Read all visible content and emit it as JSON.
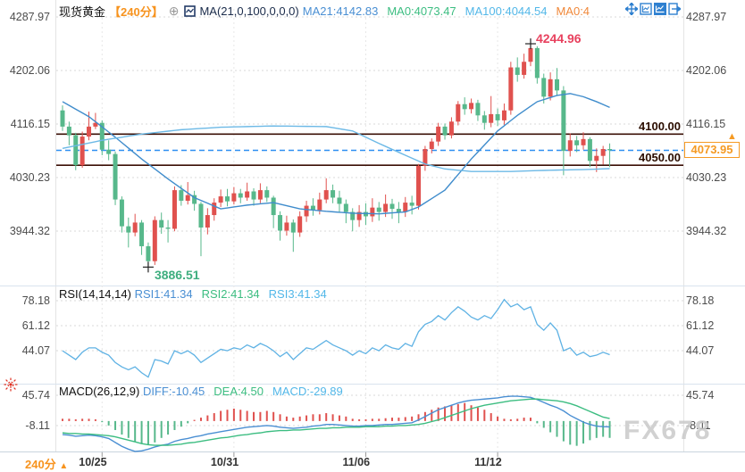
{
  "header": {
    "title": "现货黄金",
    "period": "【240分】",
    "add_icon": "⊕",
    "indicator": "MA(21,0,100,0,0,0)",
    "ma_values": [
      {
        "text": "MA21:4142.83",
        "color": "#4a8fd3"
      },
      {
        "text": "MA0:4073.47",
        "color": "#3cbd81"
      },
      {
        "text": "MA100:4044.54",
        "color": "#52b7e8"
      },
      {
        "text": "MA0:4",
        "color": "#f0883a"
      }
    ]
  },
  "toolbar": {
    "icons": [
      "pan",
      "fit-scale",
      "chart-style-active",
      "go-to-latest"
    ]
  },
  "rsi_header": {
    "name": "RSI(14,14,14)",
    "values": [
      {
        "text": "RSI1:41.34",
        "color": "#4a8fd3"
      },
      {
        "text": "RSI2:41.34",
        "color": "#3cbd81"
      },
      {
        "text": "RSI3:41.34",
        "color": "#52b7e8"
      }
    ]
  },
  "macd_header": {
    "name": "MACD(26,12,9)",
    "values": [
      {
        "text": "DIFF:-10.45",
        "color": "#4a8fd3"
      },
      {
        "text": "DEA:4.50",
        "color": "#3cbd81"
      },
      {
        "text": "MACD:-29.89",
        "color": "#52b7e8"
      }
    ]
  },
  "annotations": {
    "high": "4244.96",
    "low": "3886.51",
    "hline_top": "4100.00",
    "hline_bottom": "4050.00",
    "last_price": "4073.95",
    "arrow": "▲"
  },
  "footer": {
    "period": "240分",
    "arrow": "▲"
  },
  "watermark": "FX678",
  "colors": {
    "up": "#e0514e",
    "down": "#57b88b",
    "ma21": "#3f8ccc",
    "ma100": "#6cb9e6",
    "rsi": "#5fb2e4",
    "diff": "#4a8fd3",
    "dea": "#3cbd81",
    "hist_up": "#e0514e",
    "hist_down": "#57b88b",
    "hline": "#3a0f05",
    "dashed": "#2e8ff2",
    "grid": "#dcdcdc",
    "accent": "#f59a23"
  },
  "chart_data": [
    {
      "type": "candlestick",
      "title": "现货黄金 240分",
      "x_ticks": [
        "10/25",
        "10/31",
        "11/06",
        "11/12"
      ],
      "x_tick_indices": [
        6,
        26,
        46,
        66
      ],
      "y_ticks": [
        4287.97,
        4202.06,
        4116.15,
        4030.23,
        3944.32
      ],
      "ylim": [
        3868,
        4301
      ],
      "hlines": [
        4100.0,
        4050.0
      ],
      "last_price": 4073.95,
      "high_annotation": {
        "value": 4244.96,
        "index": 71
      },
      "low_annotation": {
        "value": 3886.51,
        "index": 13
      },
      "candles": [
        [
          4138,
          4146,
          4105,
          4112
        ],
        [
          4112,
          4120,
          4082,
          4098
        ],
        [
          4098,
          4102,
          4042,
          4050
        ],
        [
          4050,
          4104,
          4046,
          4096
        ],
        [
          4096,
          4136,
          4090,
          4112
        ],
        [
          4112,
          4134,
          4108,
          4118
        ],
        [
          4118,
          4122,
          4066,
          4075
        ],
        [
          4075,
          4090,
          4058,
          4068
        ],
        [
          4068,
          4072,
          3986,
          3995
        ],
        [
          3995,
          4000,
          3942,
          3952
        ],
        [
          3952,
          3966,
          3918,
          3942
        ],
        [
          3942,
          3972,
          3936,
          3958
        ],
        [
          3958,
          3962,
          3906,
          3920
        ],
        [
          3920,
          3926,
          3886.51,
          3896
        ],
        [
          3896,
          3968,
          3890,
          3962
        ],
        [
          3962,
          3974,
          3940,
          3950
        ],
        [
          3950,
          3962,
          3926,
          3948
        ],
        [
          3948,
          4016,
          3944,
          4010
        ],
        [
          4010,
          4018,
          3985,
          3993
        ],
        [
          3993,
          4023,
          3987,
          4002
        ],
        [
          4002,
          4009,
          3977,
          3988
        ],
        [
          3988,
          3991,
          3904,
          3950
        ],
        [
          3950,
          3981,
          3939,
          3970
        ],
        [
          3970,
          3997,
          3961,
          3990
        ],
        [
          3990,
          4011,
          3983,
          4000
        ],
        [
          4000,
          4012,
          3984,
          3992
        ],
        [
          3992,
          4015,
          3987,
          4005
        ],
        [
          4005,
          4012,
          3989,
          3998
        ],
        [
          3998,
          4022,
          3993,
          4008
        ],
        [
          4008,
          4013,
          3985,
          3995
        ],
        [
          3995,
          4021,
          3989,
          4010
        ],
        [
          4010,
          4016,
          3991,
          3998
        ],
        [
          3998,
          4001,
          3949,
          3970
        ],
        [
          3970,
          3976,
          3929,
          3945
        ],
        [
          3945,
          3969,
          3937,
          3958
        ],
        [
          3958,
          3963,
          3911,
          3942
        ],
        [
          3942,
          3976,
          3935,
          3968
        ],
        [
          3968,
          3993,
          3959,
          3985
        ],
        [
          3985,
          3997,
          3969,
          3978
        ],
        [
          3978,
          4006,
          3971,
          3995
        ],
        [
          3995,
          4029,
          3989,
          4010
        ],
        [
          4010,
          4019,
          3989,
          3998
        ],
        [
          3998,
          4009,
          3974,
          3988
        ],
        [
          3988,
          3995,
          3957,
          3975
        ],
        [
          3975,
          3981,
          3944,
          3962
        ],
        [
          3962,
          3986,
          3951,
          3975
        ],
        [
          3975,
          3989,
          3954,
          3968
        ],
        [
          3968,
          3997,
          3959,
          3982
        ],
        [
          3982,
          3991,
          3961,
          3975
        ],
        [
          3975,
          4003,
          3967,
          3988
        ],
        [
          3988,
          3996,
          3964,
          3980
        ],
        [
          3980,
          3991,
          3957,
          3975
        ],
        [
          3975,
          3999,
          3967,
          3990
        ],
        [
          3990,
          4001,
          3971,
          3985
        ],
        [
          3985,
          4052,
          3979,
          4049
        ],
        [
          4049,
          4081,
          4041,
          4076
        ],
        [
          4076,
          4093,
          4069,
          4088
        ],
        [
          4088,
          4118,
          4081,
          4112
        ],
        [
          4112,
          4117,
          4091,
          4098
        ],
        [
          4098,
          4127,
          4093,
          4120
        ],
        [
          4120,
          4153,
          4114,
          4148
        ],
        [
          4148,
          4159,
          4131,
          4140
        ],
        [
          4140,
          4157,
          4133,
          4150
        ],
        [
          4150,
          4155,
          4121,
          4130
        ],
        [
          4130,
          4137,
          4107,
          4118
        ],
        [
          4118,
          4161,
          4111,
          4132
        ],
        [
          4132,
          4141,
          4113,
          4122
        ],
        [
          4122,
          4149,
          4115,
          4138
        ],
        [
          4138,
          4216,
          4131,
          4207
        ],
        [
          4207,
          4223,
          4184,
          4195
        ],
        [
          4195,
          4229,
          4189,
          4216
        ],
        [
          4216,
          4244.96,
          4209,
          4238
        ],
        [
          4238,
          4241,
          4181,
          4190
        ],
        [
          4190,
          4197,
          4149,
          4160
        ],
        [
          4160,
          4199,
          4154,
          4188
        ],
        [
          4188,
          4206,
          4161,
          4170
        ],
        [
          4170,
          4177,
          4034,
          4073
        ],
        [
          4073,
          4101,
          4064,
          4090
        ],
        [
          4090,
          4097,
          4071,
          4082
        ],
        [
          4082,
          4103,
          4075,
          4092
        ],
        [
          4092,
          4095,
          4047,
          4057
        ],
        [
          4057,
          4077,
          4039,
          4065
        ],
        [
          4065,
          4081,
          4051,
          4076
        ],
        [
          4076,
          4085,
          4047,
          4073.95
        ]
      ],
      "ma21_waypoints": [
        [
          0,
          4152
        ],
        [
          4,
          4128
        ],
        [
          8,
          4095
        ],
        [
          12,
          4060
        ],
        [
          16,
          4028
        ],
        [
          20,
          3998
        ],
        [
          24,
          3980
        ],
        [
          28,
          3986
        ],
        [
          32,
          3990
        ],
        [
          36,
          3980
        ],
        [
          40,
          3976
        ],
        [
          44,
          3973
        ],
        [
          48,
          3972
        ],
        [
          52,
          3975
        ],
        [
          54,
          3983
        ],
        [
          58,
          4010
        ],
        [
          62,
          4060
        ],
        [
          66,
          4105
        ],
        [
          69,
          4130
        ],
        [
          72,
          4152
        ],
        [
          75,
          4162
        ],
        [
          77,
          4165
        ],
        [
          79,
          4160
        ],
        [
          81,
          4152
        ],
        [
          83,
          4142.83
        ]
      ],
      "ma100_waypoints": [
        [
          0,
          4077
        ],
        [
          6,
          4090
        ],
        [
          12,
          4100
        ],
        [
          18,
          4107
        ],
        [
          24,
          4111
        ],
        [
          32,
          4113
        ],
        [
          40,
          4112
        ],
        [
          44,
          4105
        ],
        [
          48,
          4085
        ],
        [
          52,
          4066
        ],
        [
          55,
          4052
        ],
        [
          58,
          4044
        ],
        [
          62,
          4040
        ],
        [
          68,
          4040
        ],
        [
          74,
          4042
        ],
        [
          79,
          4043
        ],
        [
          83,
          4044.54
        ]
      ]
    },
    {
      "type": "line",
      "name": "RSI",
      "y_ticks": [
        78.18,
        61.12,
        44.07
      ],
      "values": [
        44,
        41,
        38,
        43,
        46,
        46,
        43,
        41,
        36,
        33,
        31,
        33,
        29,
        26,
        38,
        37,
        35,
        44,
        42,
        44,
        41,
        36,
        39,
        42,
        45,
        44,
        46,
        45,
        48,
        46,
        49,
        47,
        44,
        40,
        43,
        38,
        42,
        46,
        45,
        48,
        51,
        48,
        46,
        44,
        41,
        44,
        42,
        46,
        44,
        48,
        46,
        45,
        49,
        47,
        57,
        62,
        64,
        68,
        65,
        70,
        74,
        71,
        67,
        65,
        68,
        66,
        72,
        79,
        74,
        76,
        72,
        74,
        62,
        58,
        63,
        58,
        44,
        46,
        41,
        43,
        40,
        41,
        43,
        41.34
      ]
    },
    {
      "type": "macd",
      "name": "MACD",
      "y_ticks": [
        45.74,
        -8.11
      ],
      "diff": [
        -24,
        -25,
        -27,
        -26,
        -25,
        -26,
        -28,
        -31,
        -38,
        -45,
        -50,
        -54,
        -53,
        -50,
        -46,
        -43,
        -41,
        -36,
        -33,
        -31,
        -28,
        -26,
        -23,
        -21,
        -19,
        -17,
        -15,
        -13,
        -11,
        -10,
        -9,
        -8,
        -9,
        -11,
        -12,
        -13,
        -12,
        -11,
        -9,
        -8,
        -6,
        -6,
        -7,
        -8,
        -9,
        -9,
        -8,
        -8,
        -7,
        -6,
        -6,
        -5,
        -4,
        -3,
        2,
        8,
        14,
        20,
        24,
        28,
        32,
        35,
        37,
        38,
        39,
        40,
        41,
        43,
        44,
        44,
        43,
        42,
        38,
        33,
        28,
        24,
        18,
        10,
        4,
        -2,
        -6,
        -9,
        -10,
        -10.45
      ],
      "dea": [
        -21,
        -22,
        -22,
        -23,
        -23,
        -24,
        -25,
        -26,
        -28,
        -31,
        -34,
        -37,
        -40,
        -42,
        -43,
        -43,
        -43,
        -42,
        -41,
        -39,
        -38,
        -36,
        -34,
        -32,
        -30,
        -29,
        -27,
        -25,
        -24,
        -22,
        -21,
        -19,
        -18,
        -17,
        -17,
        -16,
        -16,
        -15,
        -14,
        -13,
        -13,
        -12,
        -12,
        -11,
        -11,
        -11,
        -10,
        -10,
        -10,
        -9,
        -9,
        -8,
        -8,
        -7,
        -6,
        -4,
        -1,
        2,
        6,
        10,
        14,
        18,
        22,
        25,
        28,
        30,
        32,
        34,
        36,
        37,
        38,
        39,
        39,
        38,
        37,
        36,
        34,
        31,
        27,
        22,
        17,
        12,
        7,
        4.5
      ],
      "hist": [
        4,
        4,
        3,
        4,
        4,
        3,
        -2,
        -8,
        -16,
        -24,
        -30,
        -36,
        -40,
        -42,
        -38,
        -30,
        -24,
        -16,
        -10,
        -4,
        2,
        6,
        10,
        14,
        18,
        20,
        22,
        20,
        18,
        16,
        16,
        18,
        16,
        12,
        8,
        6,
        8,
        10,
        12,
        12,
        14,
        12,
        10,
        8,
        4,
        3,
        3,
        4,
        4,
        5,
        6,
        6,
        7,
        8,
        12,
        16,
        20,
        24,
        26,
        28,
        30,
        32,
        28,
        24,
        20,
        14,
        8,
        4,
        3,
        4,
        6,
        6,
        -4,
        -12,
        -20,
        -28,
        -36,
        -42,
        -44,
        -40,
        -34,
        -30,
        -28,
        -29.89
      ]
    }
  ]
}
